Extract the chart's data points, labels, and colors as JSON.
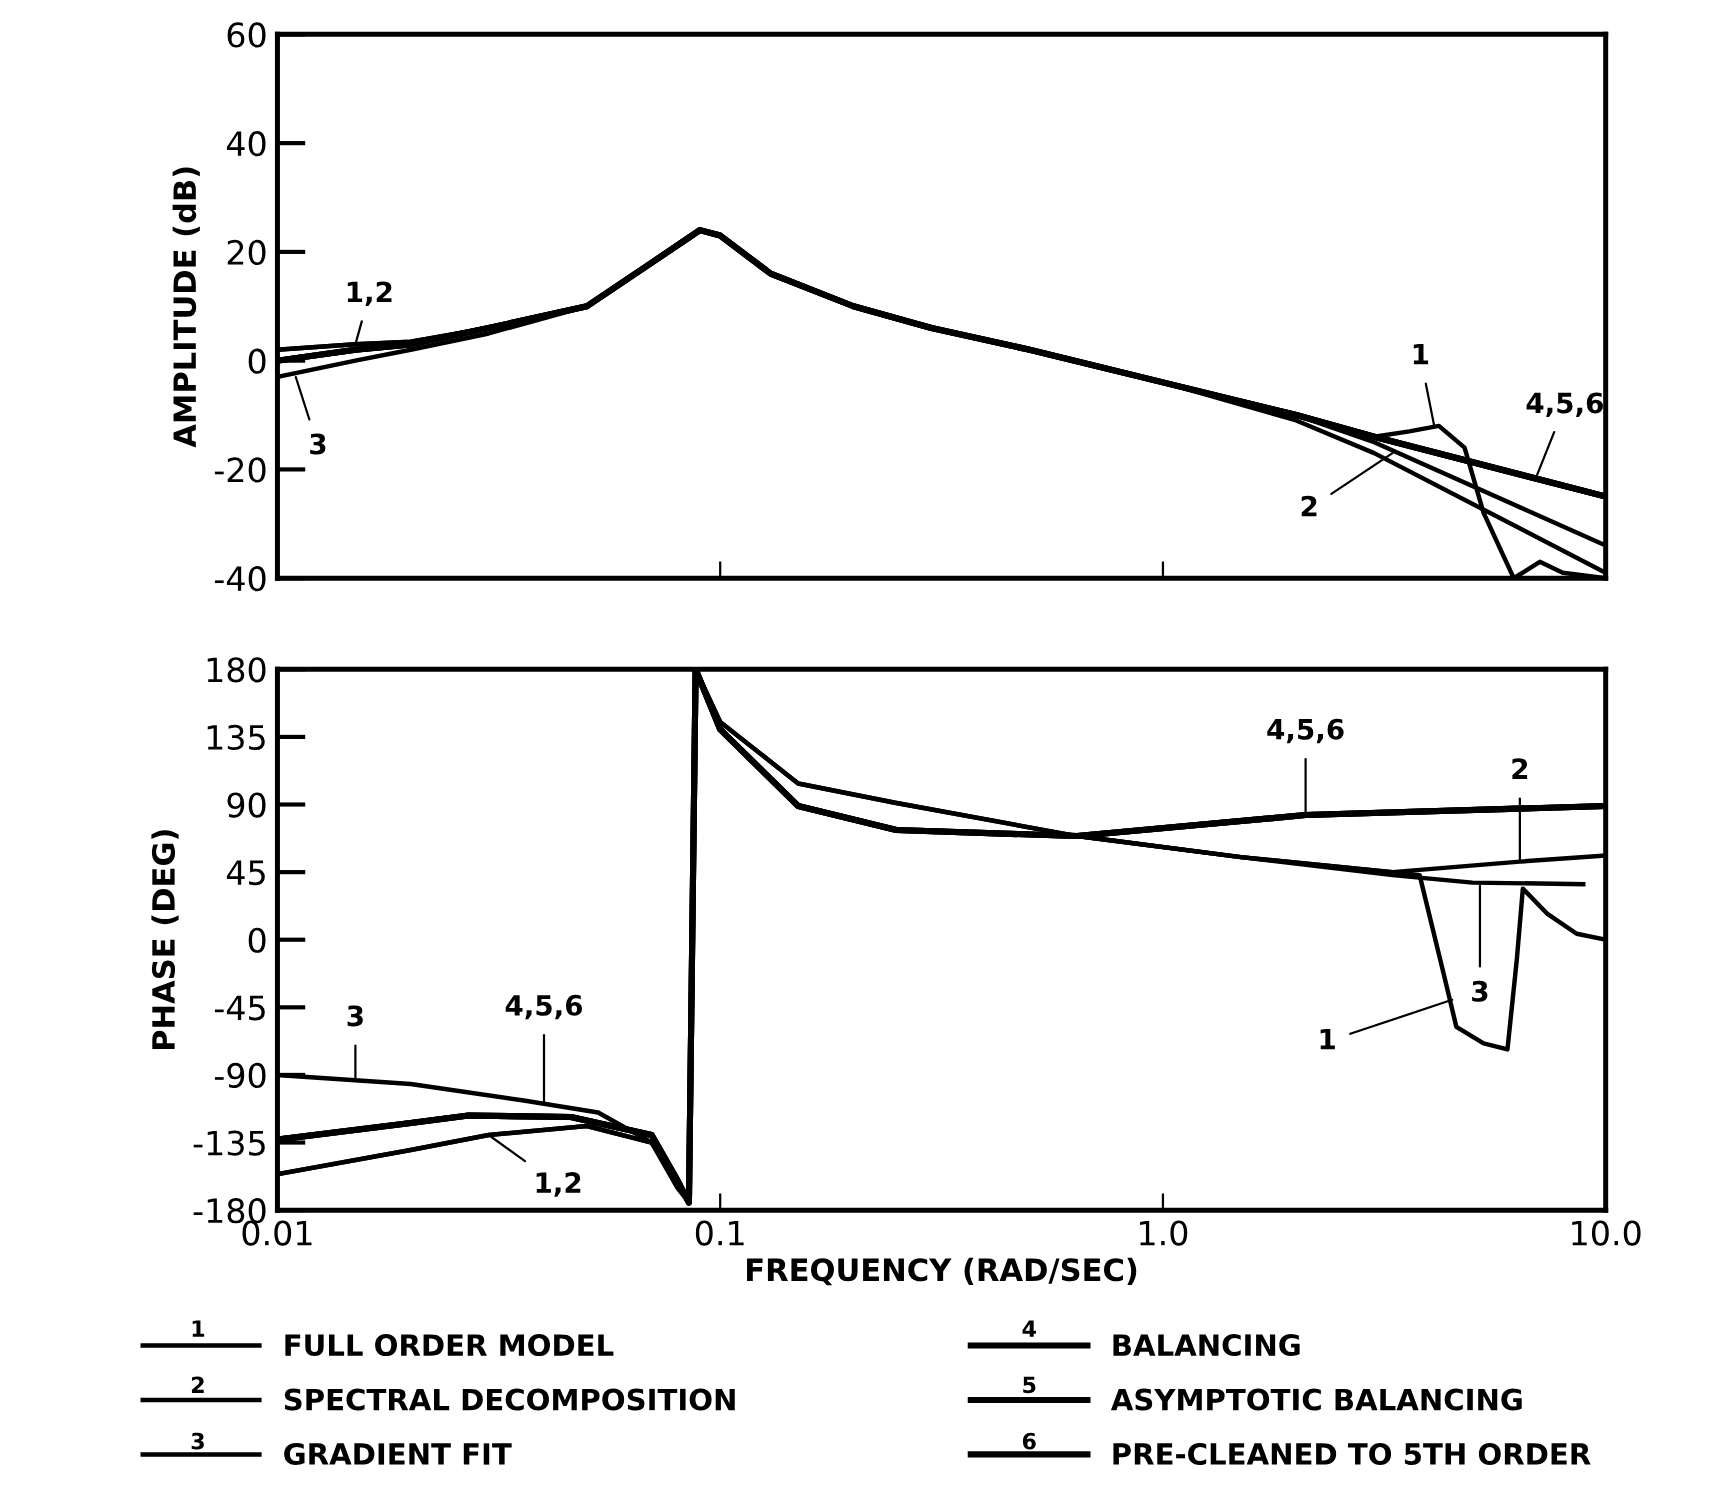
{
  "chart_data": [
    {
      "type": "line",
      "ylabel": "AMPLITUDE (dB)",
      "log": "x",
      "xlim": [
        0.01,
        10.0
      ],
      "ylim": [
        -40,
        60
      ],
      "xticks": [
        0.01,
        0.1,
        1.0,
        10.0
      ],
      "yticks": [
        -40,
        -20,
        0,
        20,
        40,
        60
      ],
      "tick_labels": "y",
      "grid": false,
      "legend": false,
      "marker": "none",
      "line_style": "solid",
      "series": [
        {
          "color": "#000000",
          "x": [
            0.01,
            0.015,
            0.02,
            0.03,
            0.05,
            0.07,
            0.09,
            0.1,
            0.13,
            0.2,
            0.3,
            0.5,
            1.0,
            2.0,
            3.0,
            3.6,
            4.2,
            4.8,
            5.3,
            6.2,
            7.1,
            8.0,
            10.0
          ],
          "values": [
            2,
            3,
            3.5,
            6,
            10,
            18,
            24,
            23,
            16,
            10,
            6,
            2,
            -4,
            -10,
            -14,
            -13,
            -12,
            -16,
            -28,
            -40,
            -37,
            -39,
            -40
          ]
        },
        {
          "color": "#000000",
          "x": [
            0.01,
            0.015,
            0.02,
            0.03,
            0.05,
            0.07,
            0.09,
            0.1,
            0.13,
            0.2,
            0.3,
            0.5,
            1.0,
            2.0,
            3.0,
            10.0
          ],
          "values": [
            2,
            3,
            3.5,
            6,
            10,
            18,
            24,
            23,
            16,
            10,
            6,
            2,
            -4,
            -10,
            -15,
            -34
          ]
        },
        {
          "color": "#000000",
          "x": [
            0.01,
            0.015,
            0.02,
            0.03,
            0.05,
            0.07,
            0.09,
            0.1,
            0.13,
            0.2,
            0.3,
            0.5,
            1.0,
            2.0,
            3.0,
            10.0
          ],
          "values": [
            -3,
            0,
            2,
            5,
            10,
            18,
            24,
            23,
            16,
            10,
            6,
            2,
            -4,
            -11,
            -17,
            -39
          ]
        },
        {
          "color": "#000000",
          "x": [
            0.01,
            0.015,
            0.02,
            0.03,
            0.05,
            0.07,
            0.09,
            0.1,
            0.13,
            0.2,
            0.3,
            0.5,
            1.0,
            2.0,
            3.0,
            10.0
          ],
          "values": [
            0,
            2,
            3,
            6,
            10,
            18,
            24,
            23,
            16,
            10,
            6,
            2,
            -4,
            -10,
            -14,
            -25
          ]
        },
        {
          "color": "#000000",
          "x": [
            0.01,
            0.015,
            0.02,
            0.03,
            0.05,
            0.07,
            0.09,
            0.1,
            0.13,
            0.2,
            0.3,
            0.5,
            1.0,
            2.0,
            3.0,
            10.0
          ],
          "values": [
            0,
            2,
            3,
            6,
            10,
            18,
            24,
            23,
            16,
            10,
            6,
            2,
            -4,
            -10,
            -14,
            -25
          ]
        },
        {
          "color": "#000000",
          "x": [
            0.01,
            0.015,
            0.02,
            0.03,
            0.05,
            0.07,
            0.09,
            0.1,
            0.13,
            0.2,
            0.3,
            0.5,
            1.0,
            2.0,
            3.0,
            10.0
          ],
          "values": [
            0,
            2,
            3,
            6,
            10,
            18,
            24,
            23,
            16,
            10,
            6,
            2,
            -4,
            -10,
            -14,
            -25
          ]
        }
      ],
      "annotations": [
        {
          "text": "1,2",
          "x": 0.015,
          "y": 3
        },
        {
          "text": "3",
          "x": 0.011,
          "y": -3
        },
        {
          "text": "1",
          "x": 4.1,
          "y": -12
        },
        {
          "text": "2",
          "x": 3.3,
          "y": -17
        },
        {
          "text": "4,5,6",
          "x": 7.0,
          "y": -21
        }
      ]
    },
    {
      "type": "line",
      "ylabel": "PHASE (DEG)",
      "xlabel": "FREQUENCY (RAD/SEC)",
      "log": "x",
      "xlim": [
        0.01,
        10.0
      ],
      "ylim": [
        -180,
        180
      ],
      "xticks": [
        {
          "value": 0.01,
          "label": "0.01"
        },
        {
          "value": 0.1,
          "label": "0.1"
        },
        {
          "value": 1.0,
          "label": "1.0"
        },
        {
          "value": 10.0,
          "label": "10.0"
        }
      ],
      "yticks": [
        -180,
        -135,
        -90,
        -45,
        0,
        45,
        90,
        135,
        180
      ],
      "grid": false,
      "legend": "bottom",
      "marker": "none",
      "line_style": "solid",
      "series": [
        {
          "name": "FULL ORDER MODEL",
          "color": "#000000",
          "x": [
            0.01,
            0.02,
            0.03,
            0.05,
            0.07,
            0.08,
            0.085,
            0.088,
            0.1,
            0.15,
            0.25,
            0.64,
            1.5,
            3.3,
            3.8,
            4.3,
            4.6,
            5.3,
            6.0,
            6.3,
            6.5,
            7.4,
            8.6,
            10.0
          ],
          "values": [
            -156,
            -140,
            -130,
            -124,
            -135,
            -160,
            -175,
            180,
            145,
            104,
            91,
            69,
            55,
            45,
            43,
            -22,
            -58,
            -69,
            -73,
            -13,
            34,
            17,
            4,
            0
          ]
        },
        {
          "name": "SPECTRAL DECOMPOSITION",
          "color": "#000000",
          "x": [
            0.01,
            0.02,
            0.03,
            0.05,
            0.07,
            0.08,
            0.085,
            0.088,
            0.1,
            0.15,
            0.25,
            0.64,
            1.5,
            3.3,
            6.4,
            10.0
          ],
          "values": [
            -156,
            -140,
            -130,
            -124,
            -135,
            -160,
            -175,
            180,
            145,
            104,
            91,
            69,
            55,
            45,
            52,
            56
          ]
        },
        {
          "name": "GRADIENT FIT",
          "color": "#000000",
          "x": [
            0.01,
            0.02,
            0.036,
            0.053,
            0.07,
            0.08,
            0.085,
            0.088,
            0.1,
            0.15,
            0.25,
            0.64,
            1.5,
            3.3,
            5.0,
            8.9
          ],
          "values": [
            -90,
            -96,
            -107,
            -115,
            -135,
            -165,
            -175,
            180,
            140,
            89,
            73,
            69,
            55,
            43,
            38,
            37
          ]
        },
        {
          "name": "BALANCING",
          "color": "#000000",
          "x": [
            0.01,
            0.02,
            0.027,
            0.046,
            0.07,
            0.08,
            0.085,
            0.088,
            0.1,
            0.15,
            0.25,
            0.64,
            2.1,
            10.0
          ],
          "values": [
            -133,
            -122,
            -117,
            -118,
            -130,
            -160,
            -175,
            180,
            140,
            89,
            73,
            69,
            83,
            89
          ]
        },
        {
          "name": "ASYMPTOTIC BALANCING",
          "color": "#000000",
          "x": [
            0.01,
            0.02,
            0.027,
            0.046,
            0.07,
            0.08,
            0.085,
            0.088,
            0.1,
            0.15,
            0.25,
            0.64,
            2.1,
            10.0
          ],
          "values": [
            -133,
            -122,
            -117,
            -118,
            -130,
            -160,
            -175,
            180,
            140,
            89,
            73,
            69,
            83,
            89
          ]
        },
        {
          "name": "PRE-CLEANED TO 5TH ORDER",
          "color": "#000000",
          "x": [
            0.01,
            0.02,
            0.027,
            0.046,
            0.07,
            0.08,
            0.085,
            0.088,
            0.1,
            0.15,
            0.25,
            0.64,
            2.1,
            10.0
          ],
          "values": [
            -133,
            -122,
            -117,
            -118,
            -130,
            -160,
            -175,
            180,
            140,
            89,
            73,
            69,
            83,
            89
          ]
        }
      ],
      "annotations": [
        "1",
        "2",
        "3",
        "4",
        "5",
        "6",
        {
          "text": "3",
          "x": 0.015,
          "y": -93
        },
        {
          "text": "4,5,6",
          "x": 0.04,
          "y": -110
        },
        {
          "text": "1,2",
          "x": 0.03,
          "y": -130
        },
        {
          "text": "4,5,6",
          "x": 2.1,
          "y": 83
        },
        {
          "text": "2",
          "x": 6.4,
          "y": 53
        },
        {
          "text": "3",
          "x": 5.2,
          "y": 38
        },
        {
          "text": "1",
          "x": 4.5,
          "y": -40
        }
      ]
    }
  ]
}
